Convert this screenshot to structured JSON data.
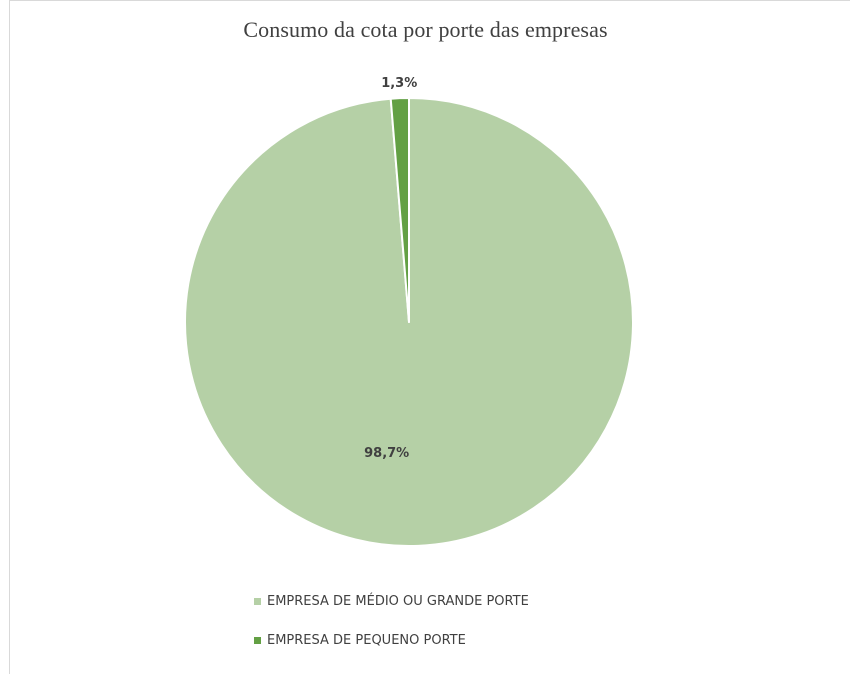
{
  "chart_data": {
    "type": "pie",
    "title": "Consumo da cota por porte das empresas",
    "categories": [
      "EMPRESA DE MÉDIO OU GRANDE PORTE",
      "EMPRESA DE PEQUENO PORTE"
    ],
    "values": [
      98.7,
      1.3
    ],
    "data_labels": [
      "98,7%",
      "1,3%"
    ],
    "colors": [
      "#b5d0a6",
      "#63a044"
    ],
    "legend_position": "bottom"
  }
}
